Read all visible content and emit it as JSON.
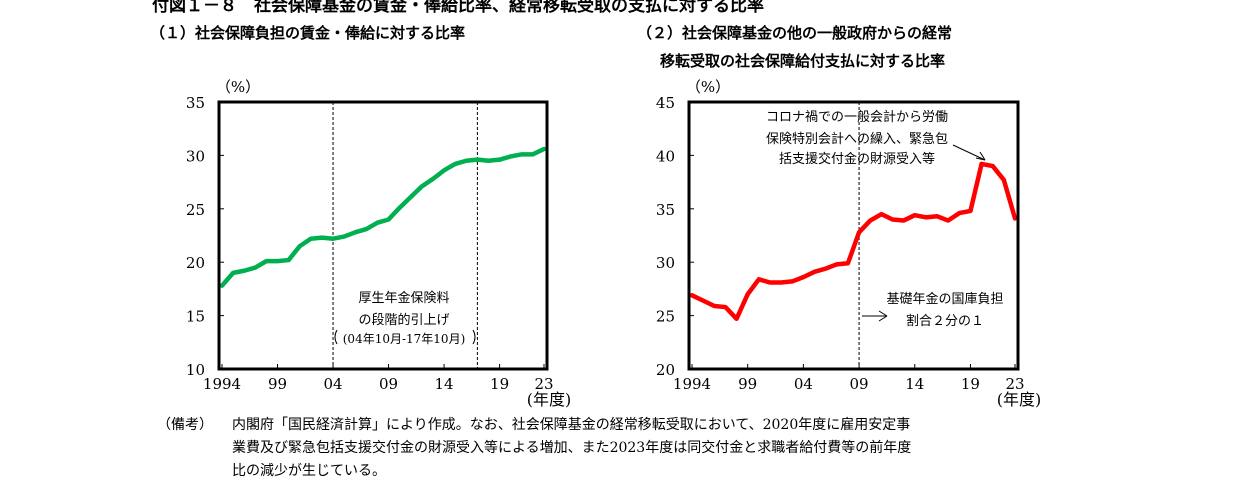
{
  "figure": {
    "title": "付図１－８　社会保障基金の賃金・俸給比率、経常移転受取の支払に対する比率"
  },
  "notes": {
    "label": "（備考）",
    "lines": [
      "内閣府「国民経済計算」により作成。なお、社会保障基金の経常移転受取において、2020年度に雇用安定事",
      "業費及び緊急包括支援交付金の財源受入等による増加、また2023年度は同交付金と求職者給付費等の前年度",
      "比の減少が生じている。"
    ]
  },
  "chart_data": [
    {
      "type": "line",
      "title": "（１）社会保障負担の賃金・俸給に対する比率",
      "ylabel": "（%）",
      "xlabel": "(年度)",
      "ylim": [
        10,
        35
      ],
      "xlim": [
        1994,
        2023
      ],
      "yticks": [
        "10",
        "15",
        "20",
        "25",
        "30",
        "35"
      ],
      "xticks": [
        {
          "year": 1994,
          "label": "1994"
        },
        {
          "year": 1999,
          "label": "99"
        },
        {
          "year": 2004,
          "label": "04"
        },
        {
          "year": 2009,
          "label": "09"
        },
        {
          "year": 2014,
          "label": "14"
        },
        {
          "year": 2019,
          "label": "19"
        },
        {
          "year": 2023,
          "label": "23"
        }
      ],
      "color": "#00b050",
      "dashed_lines": [
        2004,
        2017
      ],
      "annotations": [
        {
          "lines": [
            "厚生年金保険料",
            "の段階的引上げ",
            "(04年10月-17年10月)"
          ]
        }
      ],
      "x": [
        1994,
        1995,
        1996,
        1997,
        1998,
        1999,
        2000,
        2001,
        2002,
        2003,
        2004,
        2005,
        2006,
        2007,
        2008,
        2009,
        2010,
        2011,
        2012,
        2013,
        2014,
        2015,
        2016,
        2017,
        2018,
        2019,
        2020,
        2021,
        2022,
        2023
      ],
      "values": [
        17.8,
        19.0,
        19.2,
        19.5,
        20.1,
        20.1,
        20.2,
        21.5,
        22.2,
        22.3,
        22.2,
        22.4,
        22.8,
        23.1,
        23.7,
        24.0,
        25.1,
        26.1,
        27.1,
        27.8,
        28.6,
        29.2,
        29.5,
        29.6,
        29.5,
        29.6,
        29.9,
        30.1,
        30.1,
        30.6
      ]
    },
    {
      "type": "line",
      "title_lines": [
        "（２）社会保障基金の他の一般政府からの経常",
        "移転受取の社会保障給付支払に対する比率"
      ],
      "ylabel": "（%）",
      "xlabel": "(年度)",
      "ylim": [
        20,
        45
      ],
      "xlim": [
        1994,
        2023
      ],
      "yticks": [
        "20",
        "25",
        "30",
        "35",
        "40",
        "45"
      ],
      "xticks": [
        {
          "year": 1994,
          "label": "1994"
        },
        {
          "year": 1999,
          "label": "99"
        },
        {
          "year": 2004,
          "label": "04"
        },
        {
          "year": 2009,
          "label": "09"
        },
        {
          "year": 2014,
          "label": "14"
        },
        {
          "year": 2019,
          "label": "19"
        },
        {
          "year": 2023,
          "label": "23"
        }
      ],
      "color": "#ff0000",
      "dashed_lines": [
        2009
      ],
      "annotations": [
        {
          "lines": [
            "コロナ禍での一般会計から労働",
            "保険特別会計への繰入、緊急包",
            "括支援交付金の財源受入等"
          ]
        },
        {
          "lines": [
            "基礎年金の国庫負担",
            "割合２分の１"
          ]
        }
      ],
      "x": [
        1994,
        1995,
        1996,
        1997,
        1998,
        1999,
        2000,
        2001,
        2002,
        2003,
        2004,
        2005,
        2006,
        2007,
        2008,
        2009,
        2010,
        2011,
        2012,
        2013,
        2014,
        2015,
        2016,
        2017,
        2018,
        2019,
        2020,
        2021,
        2022,
        2023
      ],
      "values": [
        26.9,
        26.4,
        25.9,
        25.8,
        24.7,
        27.0,
        28.4,
        28.1,
        28.1,
        28.2,
        28.6,
        29.1,
        29.4,
        29.8,
        29.9,
        32.8,
        33.9,
        34.5,
        34.0,
        33.9,
        34.4,
        34.2,
        34.3,
        33.9,
        34.6,
        34.8,
        39.2,
        39.0,
        37.7,
        34.1
      ]
    }
  ]
}
